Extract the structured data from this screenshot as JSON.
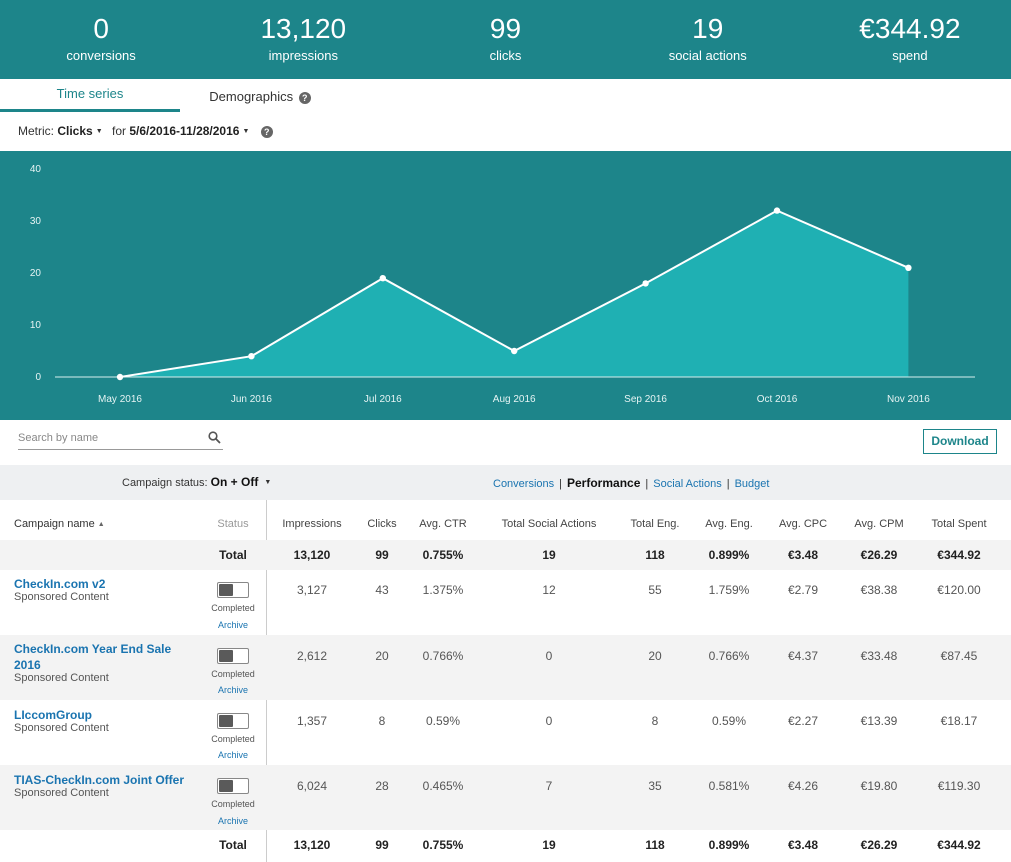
{
  "stats": [
    {
      "value": "0",
      "label": "conversions"
    },
    {
      "value": "13,120",
      "label": "impressions"
    },
    {
      "value": "99",
      "label": "clicks"
    },
    {
      "value": "19",
      "label": "social actions"
    },
    {
      "value": "€344.92",
      "label": "spend"
    }
  ],
  "tabs": {
    "time_series": "Time series",
    "demographics": "Demographics",
    "help_icon": "?"
  },
  "metric": {
    "label": "Metric:",
    "value": "Clicks",
    "for_label": "for",
    "date_range": "5/6/2016-11/28/2016",
    "caret": "▼"
  },
  "colors": {
    "teal": "#1d858a",
    "area_fill": "#1fb0b3",
    "link": "#1a74b0"
  },
  "chart_data": {
    "type": "area",
    "categories": [
      "May 2016",
      "Jun 2016",
      "Jul 2016",
      "Aug 2016",
      "Sep 2016",
      "Oct 2016",
      "Nov 2016"
    ],
    "values": [
      0,
      4,
      19,
      5,
      18,
      32,
      21
    ],
    "yticks": [
      "0",
      "10",
      "20",
      "30",
      "40"
    ],
    "ylim": [
      0,
      40
    ],
    "grid": false
  },
  "search": {
    "placeholder": "Search by name",
    "icon": "search-icon"
  },
  "download_label": "Download",
  "filters": {
    "status_label": "Campaign status:",
    "status_value": "On + Off",
    "views": [
      "Conversions",
      "Performance",
      "Social Actions",
      "Budget"
    ],
    "active_view": "Performance"
  },
  "table": {
    "headers": [
      "Campaign name",
      "Status",
      "Impressions",
      "Clicks",
      "Avg. CTR",
      "Total Social Actions",
      "Total Eng.",
      "Avg. Eng.",
      "Avg. CPC",
      "Avg. CPM",
      "Total Spent"
    ],
    "sort_indicator": "▲",
    "total_label": "Total",
    "total": [
      "13,120",
      "99",
      "0.755%",
      "19",
      "118",
      "0.899%",
      "€3.48",
      "€26.29",
      "€344.92"
    ],
    "rows": [
      {
        "name": "CheckIn.com v2",
        "type": "Sponsored Content",
        "status": "Completed",
        "archive": "Archive",
        "values": [
          "3,127",
          "43",
          "1.375%",
          "12",
          "55",
          "1.759%",
          "€2.79",
          "€38.38",
          "€120.00"
        ]
      },
      {
        "name": "CheckIn.com Year End Sale 2016",
        "type": "Sponsored Content",
        "status": "Completed",
        "archive": "Archive",
        "values": [
          "2,612",
          "20",
          "0.766%",
          "0",
          "20",
          "0.766%",
          "€4.37",
          "€33.48",
          "€87.45"
        ]
      },
      {
        "name": "LIccomGroup",
        "type": "Sponsored Content",
        "status": "Completed",
        "archive": "Archive",
        "values": [
          "1,357",
          "8",
          "0.59%",
          "0",
          "8",
          "0.59%",
          "€2.27",
          "€13.39",
          "€18.17"
        ]
      },
      {
        "name": "TIAS-CheckIn.com Joint Offer",
        "type": "Sponsored Content",
        "status": "Completed",
        "archive": "Archive",
        "values": [
          "6,024",
          "28",
          "0.465%",
          "7",
          "35",
          "0.581%",
          "€4.26",
          "€19.80",
          "€119.30"
        ]
      }
    ]
  }
}
